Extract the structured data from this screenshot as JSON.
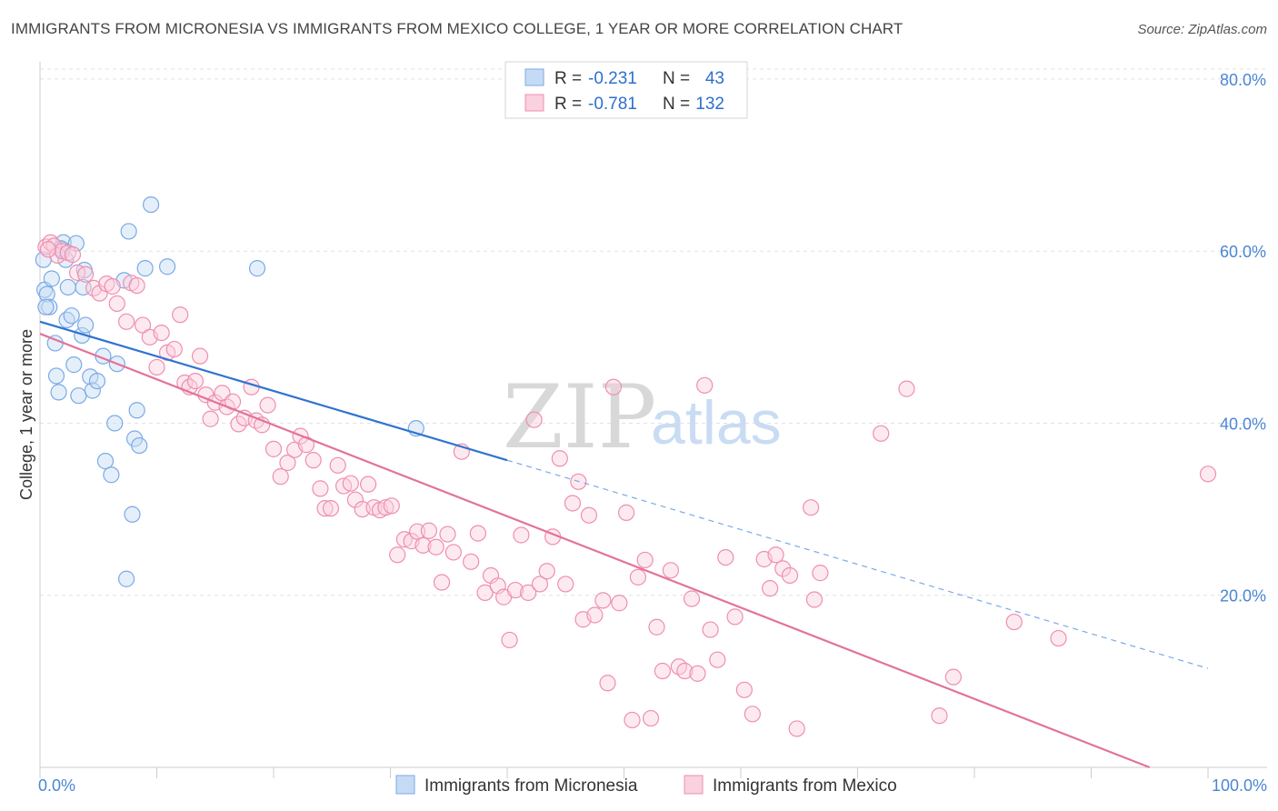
{
  "header": {
    "title": "IMMIGRANTS FROM MICRONESIA VS IMMIGRANTS FROM MEXICO COLLEGE, 1 YEAR OR MORE CORRELATION CHART",
    "source": "Source: ZipAtlas.com"
  },
  "watermark": {
    "zip": "ZIP",
    "atlas": "atlas"
  },
  "legend": {
    "rows": [
      {
        "r_label": "R =",
        "r_value": "-0.231",
        "n_label": "N =",
        "n_value": "43",
        "color": "#a8c8f0"
      },
      {
        "r_label": "R =",
        "r_value": "-0.781",
        "n_label": "N =",
        "n_value": "132",
        "color": "#f6b8cb"
      }
    ]
  },
  "bottom_legend": {
    "items": [
      {
        "label": "Immigrants from Micronesia",
        "color": "#a8c8f0"
      },
      {
        "label": "Immigrants from Mexico",
        "color": "#f6b8cb"
      }
    ]
  },
  "chart_data": {
    "type": "scatter",
    "title": "IMMIGRANTS FROM MICRONESIA VS IMMIGRANTS FROM MEXICO COLLEGE, 1 YEAR OR MORE CORRELATION CHART",
    "xlabel": "",
    "ylabel": "College, 1 year or more",
    "xlim": [
      0,
      100
    ],
    "ylim": [
      0,
      82
    ],
    "x_ticks": [
      "0.0%",
      "100.0%"
    ],
    "y_ticks": [
      {
        "value": 20,
        "label": "20.0%"
      },
      {
        "value": 40,
        "label": "40.0%"
      },
      {
        "value": 60,
        "label": "60.0%"
      },
      {
        "value": 80,
        "label": "80.0%"
      }
    ],
    "grid": true,
    "series": [
      {
        "name": "Immigrants from Micronesia",
        "color": "#7aaae6",
        "fill": "#c5dbf5",
        "points": [
          [
            0.3,
            59.0
          ],
          [
            0.4,
            55.5
          ],
          [
            0.6,
            55.0
          ],
          [
            0.8,
            53.5
          ],
          [
            1.0,
            56.8
          ],
          [
            1.3,
            49.3
          ],
          [
            1.4,
            45.5
          ],
          [
            1.6,
            43.6
          ],
          [
            1.9,
            60.2
          ],
          [
            2.0,
            61.0
          ],
          [
            2.2,
            59.0
          ],
          [
            2.3,
            52.0
          ],
          [
            2.4,
            55.8
          ],
          [
            2.7,
            52.5
          ],
          [
            2.9,
            46.8
          ],
          [
            3.1,
            60.9
          ],
          [
            3.3,
            43.2
          ],
          [
            3.6,
            50.2
          ],
          [
            3.7,
            55.8
          ],
          [
            3.8,
            57.8
          ],
          [
            3.9,
            51.4
          ],
          [
            4.3,
            45.4
          ],
          [
            4.5,
            43.8
          ],
          [
            4.9,
            44.9
          ],
          [
            5.4,
            47.8
          ],
          [
            5.6,
            35.6
          ],
          [
            6.1,
            34.0
          ],
          [
            6.4,
            40.0
          ],
          [
            6.6,
            46.9
          ],
          [
            7.2,
            56.6
          ],
          [
            7.4,
            21.9
          ],
          [
            7.6,
            62.3
          ],
          [
            7.9,
            29.4
          ],
          [
            8.1,
            38.2
          ],
          [
            8.3,
            41.5
          ],
          [
            8.5,
            37.4
          ],
          [
            9.0,
            58.0
          ],
          [
            9.5,
            65.4
          ],
          [
            10.9,
            58.2
          ],
          [
            18.6,
            58.0
          ],
          [
            32.2,
            39.4
          ],
          [
            0.5,
            53.5
          ],
          [
            1.8,
            60.3
          ]
        ],
        "trend": {
          "x0": 0,
          "y0": 51.8,
          "x1": 40,
          "y1": 35.7,
          "dash_to_x": 100,
          "dash_to_y": 11.5
        }
      },
      {
        "name": "Immigrants from Mexico",
        "color": "#ee8fae",
        "fill": "#fad1de",
        "points": [
          [
            0.5,
            60.5
          ],
          [
            0.9,
            61.0
          ],
          [
            1.2,
            60.6
          ],
          [
            1.5,
            59.5
          ],
          [
            1.9,
            60.0
          ],
          [
            2.4,
            59.8
          ],
          [
            2.8,
            59.6
          ],
          [
            3.2,
            57.5
          ],
          [
            3.9,
            57.3
          ],
          [
            4.6,
            55.7
          ],
          [
            5.1,
            55.1
          ],
          [
            5.7,
            56.2
          ],
          [
            6.2,
            55.9
          ],
          [
            6.6,
            53.9
          ],
          [
            7.4,
            51.8
          ],
          [
            7.8,
            56.3
          ],
          [
            8.3,
            56.0
          ],
          [
            8.8,
            51.4
          ],
          [
            9.4,
            50.0
          ],
          [
            10.0,
            46.5
          ],
          [
            10.4,
            50.5
          ],
          [
            10.9,
            48.2
          ],
          [
            11.5,
            48.6
          ],
          [
            12.0,
            52.6
          ],
          [
            12.4,
            44.7
          ],
          [
            12.8,
            44.2
          ],
          [
            13.3,
            44.9
          ],
          [
            13.7,
            47.8
          ],
          [
            14.2,
            43.3
          ],
          [
            14.6,
            40.5
          ],
          [
            15.0,
            42.4
          ],
          [
            15.6,
            43.5
          ],
          [
            16.0,
            41.9
          ],
          [
            16.5,
            42.5
          ],
          [
            17.0,
            39.9
          ],
          [
            17.5,
            40.6
          ],
          [
            18.1,
            44.2
          ],
          [
            18.5,
            40.3
          ],
          [
            19.0,
            39.8
          ],
          [
            19.5,
            42.1
          ],
          [
            20.0,
            37.0
          ],
          [
            20.6,
            33.8
          ],
          [
            21.2,
            35.4
          ],
          [
            21.8,
            36.9
          ],
          [
            22.3,
            38.5
          ],
          [
            22.8,
            37.5
          ],
          [
            23.4,
            35.7
          ],
          [
            24.0,
            32.4
          ],
          [
            24.4,
            30.1
          ],
          [
            24.9,
            30.1
          ],
          [
            25.5,
            35.1
          ],
          [
            26.0,
            32.7
          ],
          [
            26.6,
            33.0
          ],
          [
            27.0,
            31.1
          ],
          [
            27.6,
            30.0
          ],
          [
            28.1,
            32.9
          ],
          [
            28.6,
            30.2
          ],
          [
            29.1,
            29.9
          ],
          [
            29.6,
            30.2
          ],
          [
            30.1,
            30.4
          ],
          [
            30.6,
            24.7
          ],
          [
            31.2,
            26.5
          ],
          [
            31.8,
            26.3
          ],
          [
            32.3,
            27.4
          ],
          [
            32.8,
            25.8
          ],
          [
            33.3,
            27.5
          ],
          [
            33.9,
            25.6
          ],
          [
            34.4,
            21.5
          ],
          [
            34.9,
            27.1
          ],
          [
            35.4,
            25.0
          ],
          [
            36.1,
            36.7
          ],
          [
            36.9,
            23.9
          ],
          [
            37.5,
            27.2
          ],
          [
            38.1,
            20.3
          ],
          [
            38.6,
            22.3
          ],
          [
            39.2,
            21.1
          ],
          [
            39.7,
            19.8
          ],
          [
            40.2,
            14.8
          ],
          [
            40.7,
            20.6
          ],
          [
            41.2,
            27.0
          ],
          [
            41.8,
            20.3
          ],
          [
            42.3,
            40.4
          ],
          [
            42.8,
            21.3
          ],
          [
            43.4,
            22.8
          ],
          [
            43.9,
            26.8
          ],
          [
            44.5,
            35.9
          ],
          [
            45.0,
            21.3
          ],
          [
            45.6,
            30.7
          ],
          [
            46.1,
            33.2
          ],
          [
            46.5,
            17.2
          ],
          [
            47.0,
            29.3
          ],
          [
            47.5,
            17.7
          ],
          [
            48.2,
            19.4
          ],
          [
            48.6,
            9.8
          ],
          [
            49.1,
            44.2
          ],
          [
            49.6,
            19.1
          ],
          [
            50.2,
            29.6
          ],
          [
            50.7,
            5.5
          ],
          [
            51.2,
            22.1
          ],
          [
            51.8,
            24.1
          ],
          [
            52.3,
            5.7
          ],
          [
            52.8,
            16.3
          ],
          [
            53.3,
            11.2
          ],
          [
            54.0,
            22.9
          ],
          [
            54.7,
            11.7
          ],
          [
            55.2,
            11.2
          ],
          [
            55.8,
            19.6
          ],
          [
            56.3,
            10.9
          ],
          [
            56.9,
            44.4
          ],
          [
            57.4,
            16.0
          ],
          [
            58.0,
            12.5
          ],
          [
            58.7,
            24.4
          ],
          [
            59.5,
            17.5
          ],
          [
            60.3,
            9.0
          ],
          [
            61.0,
            6.2
          ],
          [
            62.0,
            24.2
          ],
          [
            62.5,
            20.8
          ],
          [
            63.0,
            24.7
          ],
          [
            63.6,
            23.1
          ],
          [
            64.2,
            22.3
          ],
          [
            64.8,
            4.5
          ],
          [
            66.0,
            30.2
          ],
          [
            66.3,
            19.5
          ],
          [
            66.8,
            22.6
          ],
          [
            72.0,
            38.8
          ],
          [
            74.2,
            44.0
          ],
          [
            77.0,
            6.0
          ],
          [
            78.2,
            10.5
          ],
          [
            83.4,
            16.9
          ],
          [
            87.2,
            15.0
          ],
          [
            100.0,
            34.1
          ],
          [
            0.7,
            60.2
          ]
        ],
        "trend": {
          "x0": 0,
          "y0": 50.4,
          "x1": 95,
          "y1": 0.0
        }
      }
    ]
  }
}
